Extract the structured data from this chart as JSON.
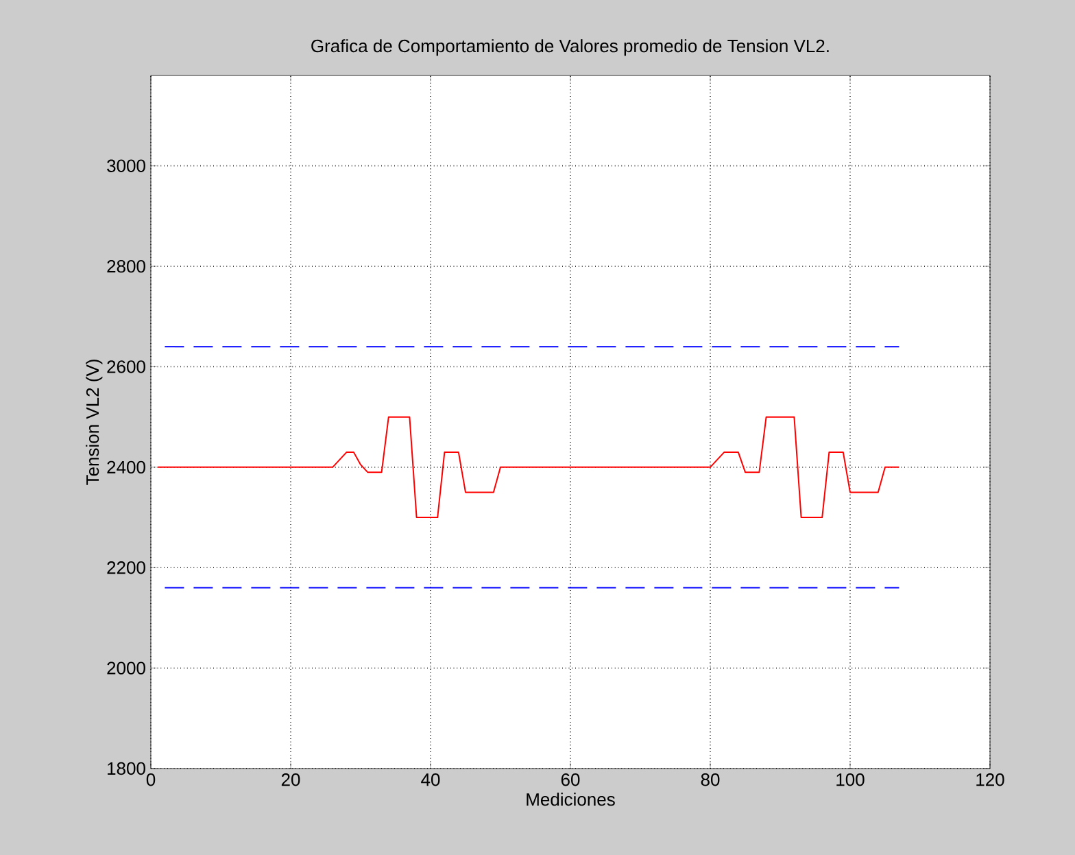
{
  "chart_data": {
    "type": "line",
    "title": "Grafica de Comportamiento de Valores promedio de Tension VL2.",
    "xlabel": "Mediciones",
    "ylabel": "Tension VL2 (V)",
    "xlim": [
      0,
      120
    ],
    "ylim": [
      1800,
      3180
    ],
    "xticks": [
      0,
      20,
      40,
      60,
      80,
      100,
      120
    ],
    "yticks": [
      1800,
      2000,
      2200,
      2400,
      2600,
      2800,
      3000
    ],
    "grid": true,
    "marker": "none",
    "series": [
      {
        "color": "#ff0000",
        "line_style": "solid",
        "x": [
          1,
          26,
          27,
          28,
          29,
          30,
          31,
          33,
          34,
          37,
          38,
          41,
          42,
          44,
          45,
          49,
          50,
          80,
          81,
          82,
          84,
          85,
          87,
          88,
          92,
          93,
          96,
          97,
          99,
          100,
          104,
          105,
          107
        ],
        "values": [
          2400,
          2400,
          2415,
          2430,
          2430,
          2405,
          2390,
          2390,
          2500,
          2500,
          2300,
          2300,
          2430,
          2430,
          2350,
          2350,
          2400,
          2400,
          2415,
          2430,
          2430,
          2390,
          2390,
          2500,
          2500,
          2300,
          2300,
          2430,
          2430,
          2350,
          2350,
          2400,
          2400
        ]
      },
      {
        "color": "#0000ff",
        "line_style": "dashed",
        "x": [
          2,
          107
        ],
        "values": [
          2640,
          2640
        ]
      },
      {
        "color": "#0000ff",
        "line_style": "dashed",
        "x": [
          2,
          107
        ],
        "values": [
          2160,
          2160
        ]
      }
    ]
  }
}
